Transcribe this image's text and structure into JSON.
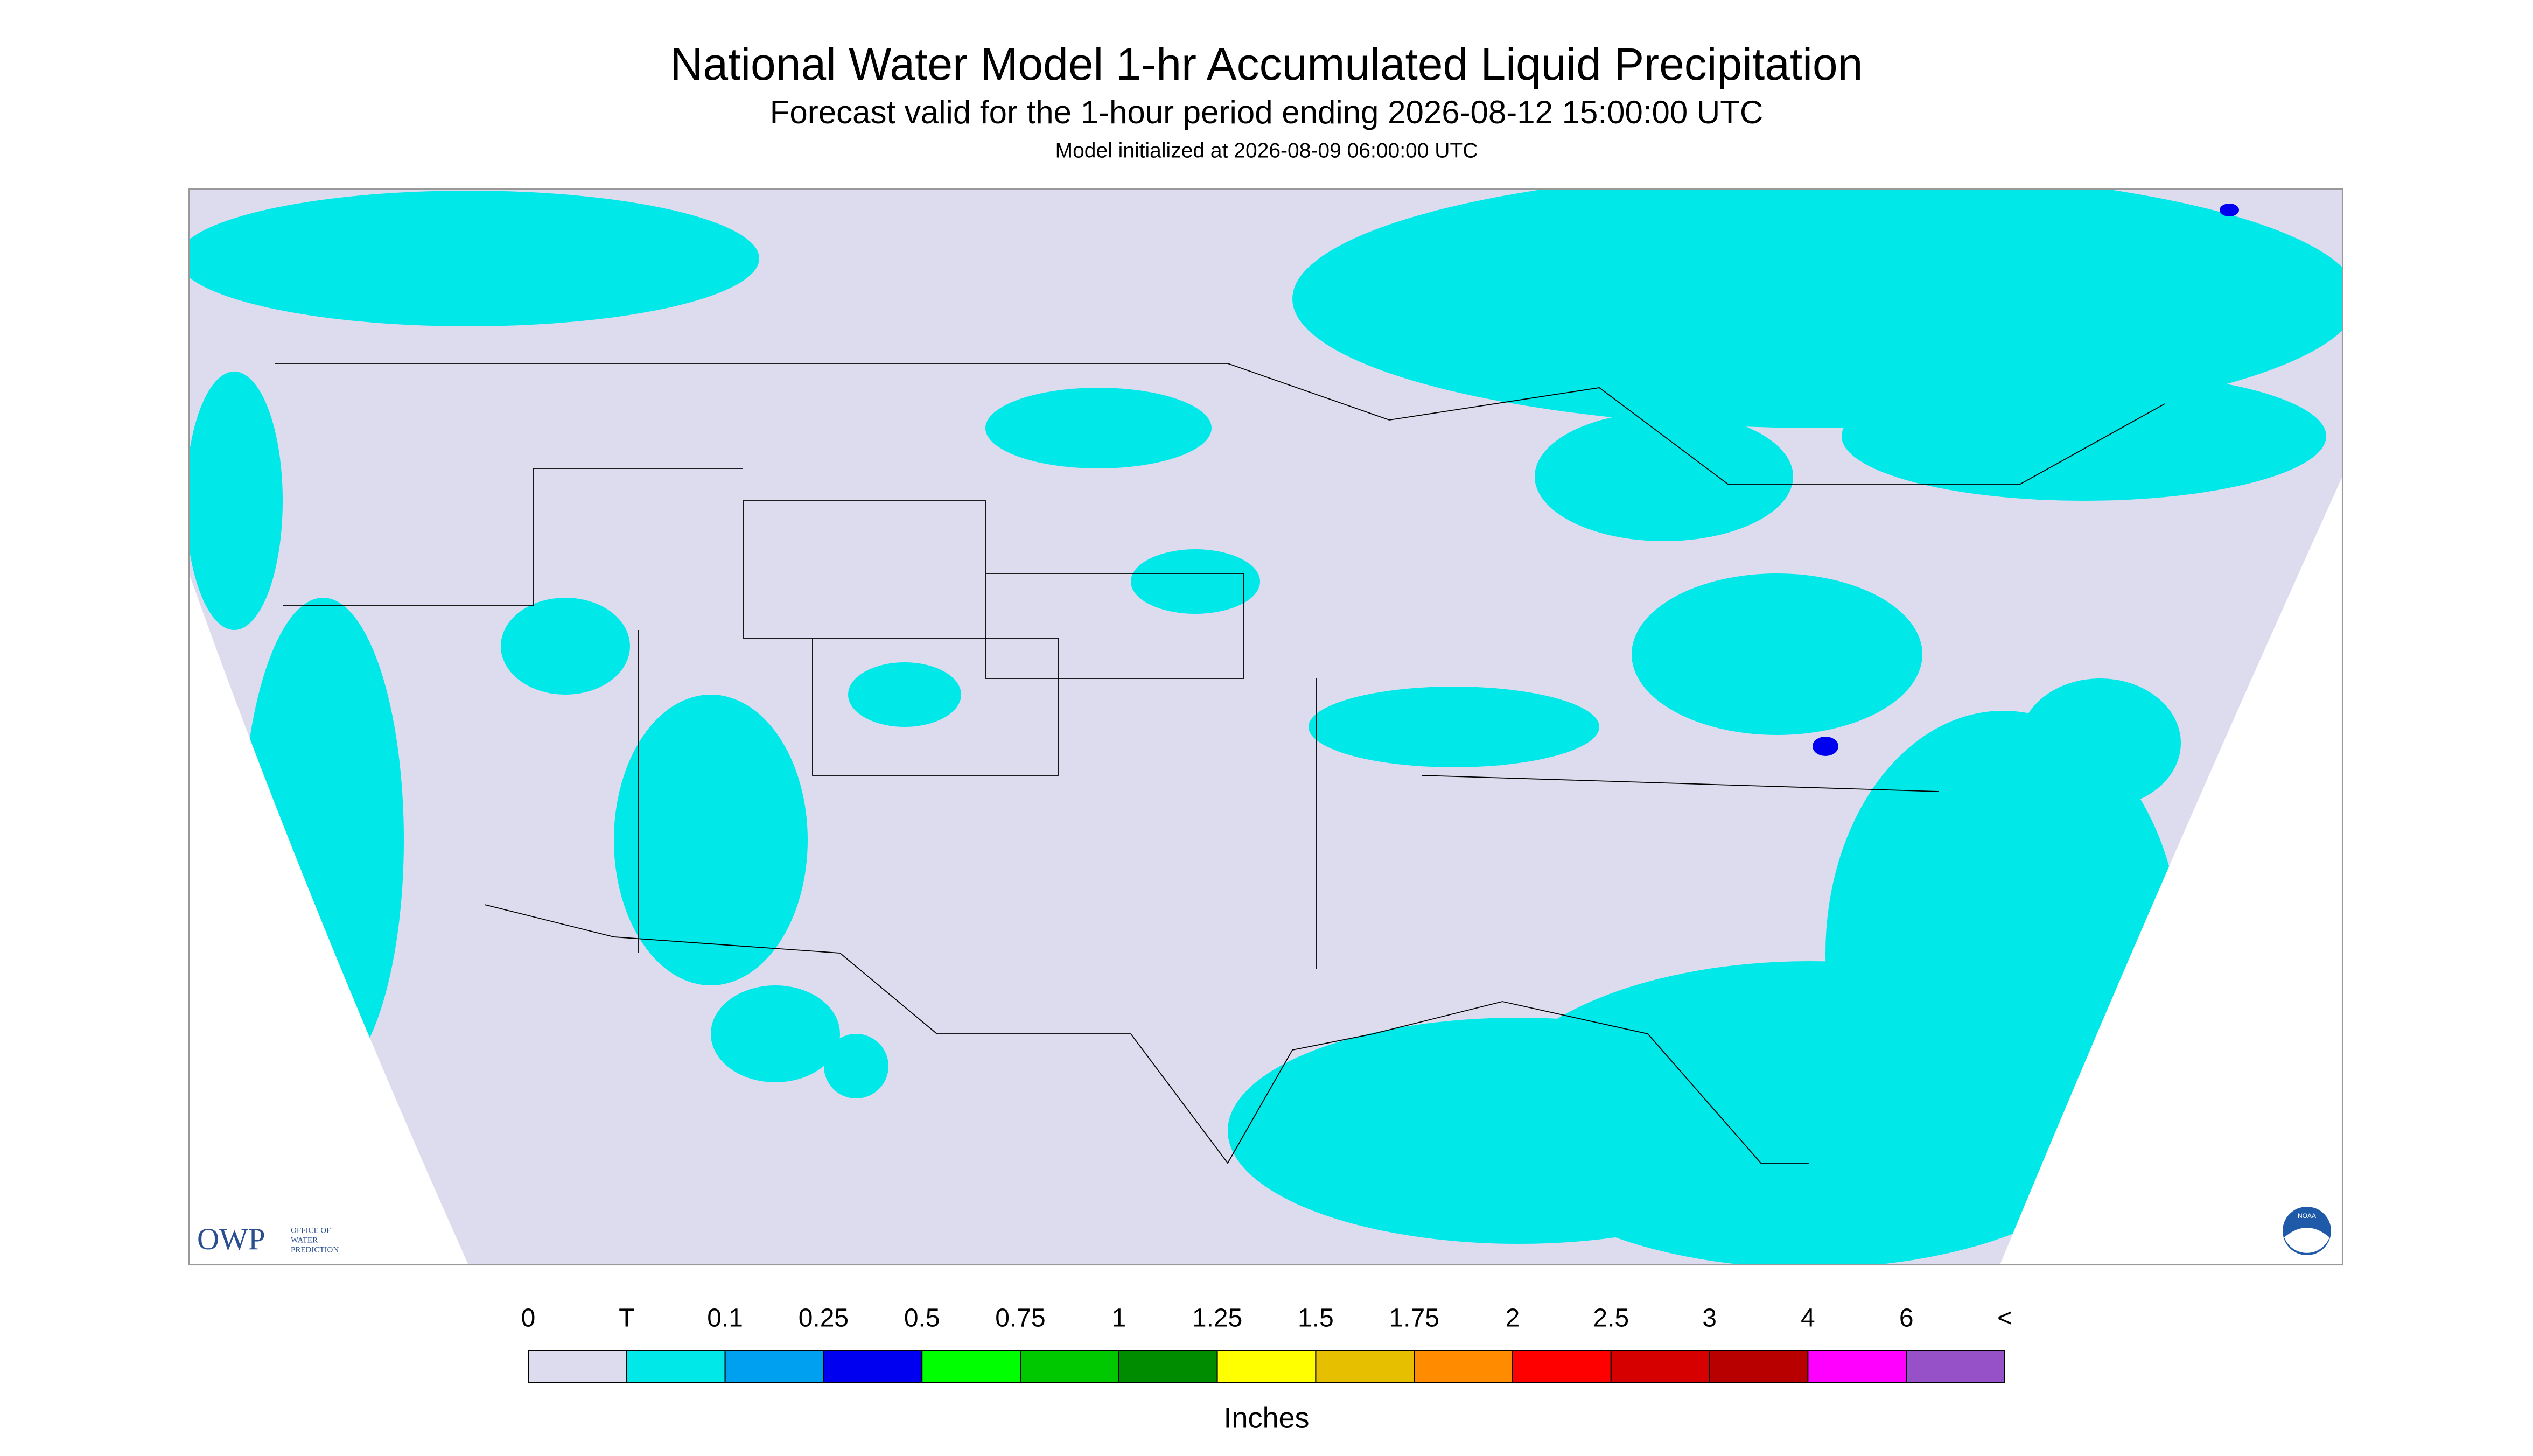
{
  "header": {
    "title": "National Water Model 1-hr Accumulated Liquid Precipitation",
    "subtitle": "Forecast valid for the 1-hour period ending 2026-08-12 15:00:00 UTC",
    "init": "Model initialized at 2026-08-09 06:00:00 UTC"
  },
  "legend": {
    "labels": [
      "0",
      "T",
      "0.1",
      "0.25",
      "0.5",
      "0.75",
      "1",
      "1.25",
      "1.5",
      "1.75",
      "2",
      "2.5",
      "3",
      "4",
      "6",
      "<"
    ],
    "colors": [
      "#dcdcee",
      "#00e8e8",
      "#00a0f0",
      "#0000f0",
      "#00ff00",
      "#00c800",
      "#008c00",
      "#ffff00",
      "#e6c000",
      "#ff8c00",
      "#ff0000",
      "#d60000",
      "#b80000",
      "#ff00ff",
      "#9650c8"
    ],
    "units": "Inches"
  },
  "logos": {
    "owp": "OWP",
    "owp_text": [
      "OFFICE OF",
      "WATER",
      "PREDICTION"
    ],
    "noaa": "NOAA"
  }
}
